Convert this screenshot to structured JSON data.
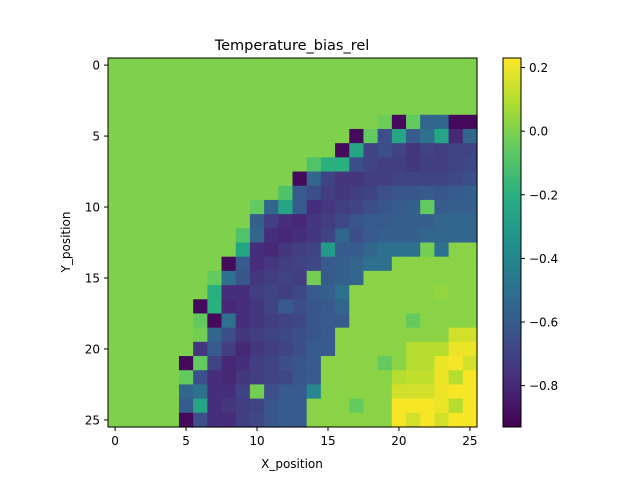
{
  "chart_data": {
    "type": "heatmap",
    "title": "Temperature_bias_rel",
    "xlabel": "X_position",
    "ylabel": "Y_position",
    "xlim": [
      -0.5,
      25.5
    ],
    "ylim": [
      25.5,
      -0.5
    ],
    "x_ticks": [
      0,
      5,
      10,
      15,
      20,
      25
    ],
    "y_ticks": [
      0,
      5,
      10,
      15,
      20,
      25
    ],
    "grid": false,
    "colormap": "viridis",
    "colorbar": {
      "vmin": -0.93,
      "vmax": 0.23,
      "ticks": [
        -0.8,
        -0.6,
        -0.4,
        -0.2,
        0.0,
        0.2
      ],
      "tick_labels": [
        "−0.8",
        "−0.6",
        "−0.4",
        "−0.2",
        "0.0",
        "0.2"
      ]
    },
    "shape": [
      26,
      26
    ],
    "values": [
      [
        0,
        0,
        0,
        0,
        0,
        0,
        0,
        0,
        0,
        0,
        0,
        0,
        0,
        0,
        0,
        0,
        0,
        0,
        0,
        0,
        0,
        0,
        0,
        0,
        0,
        0
      ],
      [
        0,
        0,
        0,
        0,
        0,
        0,
        0,
        0,
        0,
        0,
        0,
        0,
        0,
        0,
        0,
        0,
        0,
        0,
        0,
        0,
        0,
        0,
        0,
        0,
        0,
        0
      ],
      [
        0,
        0,
        0,
        0,
        0,
        0,
        0,
        0,
        0,
        0,
        0,
        0,
        0,
        0,
        0,
        0,
        0,
        0,
        0,
        0,
        0,
        0,
        0,
        0,
        0,
        0
      ],
      [
        0,
        0,
        0,
        0,
        0,
        0,
        0,
        0,
        0,
        0,
        0,
        0,
        0,
        0,
        0,
        0,
        0,
        0,
        0,
        0,
        0,
        0,
        0,
        0,
        0,
        0
      ],
      [
        0,
        0,
        0,
        0,
        0,
        0,
        0,
        0,
        0,
        0,
        0,
        0,
        0,
        0,
        0,
        0,
        0,
        0,
        0,
        -0.03,
        -0.9,
        -0.05,
        -0.55,
        -0.55,
        -0.9,
        -0.9
      ],
      [
        0,
        0,
        0,
        0,
        0,
        0,
        0,
        0,
        0,
        0,
        0,
        0,
        0,
        0,
        0,
        0,
        0,
        -0.9,
        -0.05,
        -0.65,
        -0.25,
        -0.6,
        -0.5,
        -0.25,
        -0.8,
        -0.55
      ],
      [
        0,
        0,
        0,
        0,
        0,
        0,
        0,
        0,
        0,
        0,
        0,
        0,
        0,
        0,
        0,
        0,
        -0.9,
        -0.25,
        -0.7,
        -0.65,
        -0.7,
        -0.75,
        -0.7,
        -0.72,
        -0.7,
        -0.7
      ],
      [
        0,
        0,
        0,
        0,
        0,
        0,
        0,
        0,
        0,
        0,
        0,
        0,
        0,
        0,
        -0.1,
        -0.2,
        -0.2,
        -0.65,
        -0.7,
        -0.72,
        -0.72,
        -0.74,
        -0.72,
        -0.72,
        -0.7,
        -0.68
      ],
      [
        0,
        0,
        0,
        0,
        0,
        0,
        0,
        0,
        0,
        0,
        0,
        0,
        0,
        -0.9,
        -0.55,
        -0.7,
        -0.75,
        -0.75,
        -0.72,
        -0.72,
        -0.7,
        -0.7,
        -0.7,
        -0.7,
        -0.68,
        -0.65
      ],
      [
        0,
        0,
        0,
        0,
        0,
        0,
        0,
        0,
        0,
        0,
        0,
        0,
        -0.1,
        -0.6,
        -0.65,
        -0.72,
        -0.75,
        -0.72,
        -0.7,
        -0.65,
        -0.62,
        -0.62,
        -0.6,
        -0.62,
        -0.6,
        -0.58
      ],
      [
        0,
        0,
        0,
        0,
        0,
        0,
        0,
        0,
        0,
        0,
        -0.05,
        -0.55,
        -0.25,
        -0.6,
        -0.78,
        -0.75,
        -0.72,
        -0.7,
        -0.65,
        -0.62,
        -0.6,
        -0.58,
        -0.05,
        -0.6,
        -0.58,
        -0.58
      ],
      [
        0,
        0,
        0,
        0,
        0,
        0,
        0,
        0,
        0,
        0,
        -0.58,
        -0.72,
        -0.78,
        -0.8,
        -0.75,
        -0.72,
        -0.68,
        -0.62,
        -0.6,
        -0.6,
        -0.58,
        -0.58,
        -0.58,
        -0.55,
        -0.55,
        -0.55
      ],
      [
        0,
        0,
        0,
        0,
        0,
        0,
        0,
        0,
        0,
        -0.1,
        -0.55,
        -0.78,
        -0.8,
        -0.78,
        -0.75,
        -0.7,
        -0.55,
        -0.65,
        -0.6,
        -0.58,
        -0.58,
        -0.58,
        -0.55,
        -0.55,
        -0.55,
        -0.55
      ],
      [
        0,
        0,
        0,
        0,
        0,
        0,
        0,
        0,
        0,
        -0.25,
        -0.78,
        -0.8,
        -0.75,
        -0.72,
        -0.7,
        -0.3,
        -0.6,
        -0.6,
        -0.55,
        -0.5,
        -0.5,
        -0.5,
        -0.02,
        -0.5,
        0.02,
        0.02
      ],
      [
        0,
        0,
        0,
        0,
        0,
        0,
        0,
        0,
        -0.9,
        -0.6,
        -0.78,
        -0.75,
        -0.72,
        -0.7,
        -0.68,
        -0.6,
        -0.58,
        -0.55,
        -0.5,
        -0.5,
        0.02,
        0.02,
        0.02,
        0.02,
        0.02,
        0.02
      ],
      [
        0,
        0,
        0,
        0,
        0,
        0,
        0,
        -0.05,
        -0.5,
        -0.62,
        -0.75,
        -0.72,
        -0.7,
        -0.72,
        -0.02,
        -0.6,
        -0.58,
        -0.55,
        0.02,
        0.02,
        0.02,
        0.02,
        0.02,
        0.02,
        0.02,
        0.02
      ],
      [
        0,
        0,
        0,
        0,
        0,
        0,
        0,
        -0.2,
        -0.78,
        -0.78,
        -0.72,
        -0.7,
        -0.72,
        -0.68,
        -0.6,
        -0.58,
        -0.5,
        0.02,
        0.02,
        0.02,
        0.02,
        0.02,
        0.02,
        0.04,
        0.02,
        0.02
      ],
      [
        0,
        0,
        0,
        0,
        0,
        0,
        -0.9,
        -0.2,
        -0.8,
        -0.78,
        -0.75,
        -0.7,
        -0.6,
        -0.65,
        -0.62,
        -0.6,
        -0.55,
        0.02,
        0.02,
        0.02,
        0.02,
        0.02,
        0.02,
        0.02,
        0.02,
        0.02
      ],
      [
        0,
        0,
        0,
        0,
        0,
        0,
        -0.05,
        -0.9,
        -0.5,
        -0.78,
        -0.75,
        -0.72,
        -0.7,
        -0.68,
        -0.62,
        -0.6,
        -0.6,
        0.02,
        0.02,
        0.02,
        0.02,
        -0.05,
        0.02,
        0.02,
        0.02,
        0.02
      ],
      [
        0,
        0,
        0,
        0,
        0,
        0,
        -0.02,
        -0.55,
        -0.65,
        -0.75,
        -0.72,
        -0.7,
        -0.68,
        -0.65,
        -0.62,
        -0.6,
        0.02,
        0.02,
        0.02,
        0.02,
        0.02,
        0.02,
        0.02,
        0.02,
        0.15,
        0.15
      ],
      [
        0,
        0,
        0,
        0,
        0,
        0,
        -0.75,
        -0.6,
        -0.72,
        -0.8,
        -0.75,
        -0.72,
        -0.7,
        -0.65,
        -0.6,
        -0.6,
        0.02,
        0.02,
        0.02,
        0.02,
        0.02,
        0.1,
        0.1,
        0.1,
        0.2,
        0.2
      ],
      [
        0,
        0,
        0,
        0,
        0,
        -0.9,
        -0.05,
        -0.7,
        -0.8,
        -0.78,
        -0.72,
        -0.7,
        -0.65,
        -0.62,
        -0.6,
        0.02,
        0.02,
        0.02,
        0.02,
        -0.05,
        0.02,
        0.1,
        0.1,
        0.2,
        0.22,
        0.15
      ],
      [
        0,
        0,
        0,
        0,
        0,
        -0.05,
        -0.65,
        -0.78,
        -0.8,
        -0.75,
        -0.72,
        -0.7,
        -0.68,
        -0.62,
        -0.6,
        0.02,
        0.02,
        0.02,
        0.02,
        0.02,
        0.1,
        0.12,
        0.12,
        0.2,
        0.1,
        0.22
      ],
      [
        0,
        0,
        0,
        0,
        0,
        -0.55,
        -0.5,
        -0.78,
        -0.78,
        -0.7,
        -0.02,
        -0.65,
        -0.6,
        -0.6,
        -0.4,
        0.02,
        0.02,
        0.02,
        0.02,
        0.02,
        0.15,
        0.15,
        0.15,
        0.2,
        0.22,
        0.22
      ],
      [
        0,
        0,
        0,
        0,
        0,
        -0.6,
        -0.25,
        -0.78,
        -0.75,
        -0.72,
        -0.7,
        -0.62,
        -0.6,
        -0.6,
        0.02,
        0.02,
        0.02,
        -0.05,
        0.02,
        0.02,
        0.22,
        0.22,
        0.22,
        0.2,
        0.1,
        0.22
      ],
      [
        0,
        0,
        0,
        0,
        0,
        -0.9,
        -0.65,
        -0.78,
        -0.78,
        -0.72,
        -0.68,
        -0.62,
        -0.6,
        -0.6,
        0.02,
        0.02,
        0.02,
        0.02,
        0.02,
        0.02,
        0.22,
        0.15,
        0.22,
        0.15,
        0.22,
        0.22
      ]
    ]
  }
}
